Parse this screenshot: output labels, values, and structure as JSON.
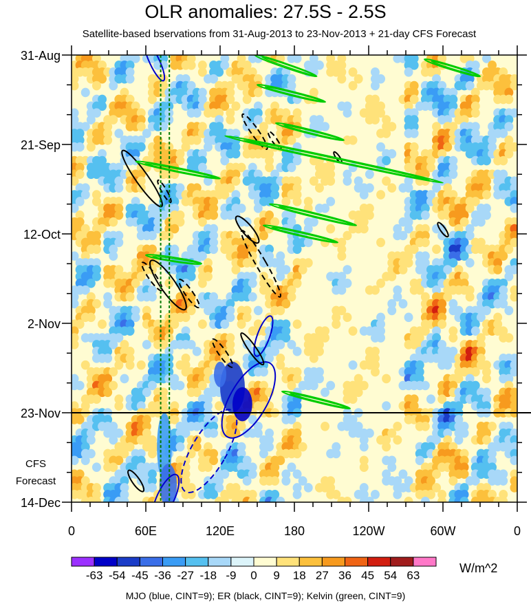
{
  "chart_data": {
    "type": "heatmap",
    "title": "OLR anomalies: 27.5S - 2.5S",
    "subtitle": "Satellite-based bservations from 31-Aug-2013 to 23-Nov-2013 + 21-day CFS Forecast",
    "xlabel": "",
    "ylabel": "",
    "x_range_deg_east": [
      0,
      360
    ],
    "x_ticks": [
      {
        "lon": 0,
        "label": "0"
      },
      {
        "lon": 60,
        "label": "60E"
      },
      {
        "lon": 120,
        "label": "120E"
      },
      {
        "lon": 180,
        "label": "180"
      },
      {
        "lon": 240,
        "label": "120W"
      },
      {
        "lon": 300,
        "label": "60W"
      },
      {
        "lon": 360,
        "label": "0"
      }
    ],
    "y_range_days_since_31aug": [
      0,
      105
    ],
    "y_ticks": [
      {
        "day": 0,
        "label": "31-Aug"
      },
      {
        "day": 21,
        "label": "21-Sep"
      },
      {
        "day": 42,
        "label": "12-Oct"
      },
      {
        "day": 63,
        "label": "2-Nov"
      },
      {
        "day": 84,
        "label": "23-Nov"
      },
      {
        "day": 105,
        "label": "14-Dec"
      }
    ],
    "observation_end_day": 84,
    "forecast_label": "CFS Forecast",
    "reference_lon_lines": [
      72,
      79
    ],
    "colorbar": {
      "levels": [
        "-63",
        "-54",
        "-45",
        "-36",
        "-27",
        "-18",
        "-9",
        "0",
        "9",
        "18",
        "27",
        "36",
        "45",
        "54",
        "63"
      ],
      "colors": [
        "#9b30ff",
        "#0000c8",
        "#1a3cc8",
        "#3a6ee8",
        "#3a9cf5",
        "#55c0f0",
        "#a8d8f8",
        "#dcf4fa",
        "#fffcd2",
        "#ffe27a",
        "#fcc03c",
        "#f79a1e",
        "#f06414",
        "#d21e10",
        "#a01c1c",
        "#ff78c8"
      ],
      "units": "W/m^2"
    },
    "contour_legend": "MJO (blue, CINT=9); ER (black, CINT=9); Kelvin (green, CINT=9)",
    "contour_colors": {
      "mjo": "#0000cc",
      "er": "#000000",
      "kelvin": "#00cc00"
    },
    "mjo_contours": [
      {
        "lon": 67,
        "day": 1.5,
        "rx_deg": 4,
        "ry_days": 5,
        "tilt_deg": -25,
        "dashed": false
      },
      {
        "lon": 143,
        "day": 81,
        "rx_deg": 15,
        "ry_days": 10,
        "tilt_deg": 30,
        "dashed": false
      },
      {
        "lon": 155,
        "day": 66,
        "rx_deg": 5,
        "ry_days": 5,
        "tilt_deg": 20,
        "dashed": false
      },
      {
        "lon": 111,
        "day": 93,
        "rx_deg": 14,
        "ry_days": 11,
        "tilt_deg": 30,
        "dashed": true
      },
      {
        "lon": 76,
        "day": 104,
        "rx_deg": 7,
        "ry_days": 6,
        "tilt_deg": 25,
        "dashed": false
      }
    ],
    "er_contours": [
      {
        "lon": 57,
        "day": 29,
        "rx_deg": 5,
        "ry_days": 8,
        "tilt_deg": -35,
        "dashed": false
      },
      {
        "lon": 75,
        "day": 32,
        "rx_deg": 2,
        "ry_days": 3,
        "tilt_deg": -30,
        "dashed": true
      },
      {
        "lon": 148,
        "day": 18,
        "rx_deg": 3,
        "ry_days": 5,
        "tilt_deg": -35,
        "dashed": true
      },
      {
        "lon": 164,
        "day": 20,
        "rx_deg": 2,
        "ry_days": 2.5,
        "tilt_deg": -35,
        "dashed": true
      },
      {
        "lon": 142,
        "day": 41,
        "rx_deg": 4,
        "ry_days": 4,
        "tilt_deg": -40,
        "dashed": false
      },
      {
        "lon": 153,
        "day": 49,
        "rx_deg": 4,
        "ry_days": 9,
        "tilt_deg": -30,
        "dashed": true
      },
      {
        "lon": 65,
        "day": 52,
        "rx_deg": 3,
        "ry_days": 4,
        "tilt_deg": -35,
        "dashed": true
      },
      {
        "lon": 78,
        "day": 54,
        "rx_deg": 6,
        "ry_days": 7,
        "tilt_deg": -35,
        "dashed": false
      },
      {
        "lon": 95,
        "day": 56,
        "rx_deg": 3,
        "ry_days": 4,
        "tilt_deg": -35,
        "dashed": true
      },
      {
        "lon": 122,
        "day": 70,
        "rx_deg": 3,
        "ry_days": 4,
        "tilt_deg": -35,
        "dashed": true
      },
      {
        "lon": 146,
        "day": 69,
        "rx_deg": 3,
        "ry_days": 4.5,
        "tilt_deg": -35,
        "dashed": false
      },
      {
        "lon": 215,
        "day": 24,
        "rx_deg": 1.5,
        "ry_days": 1.5,
        "tilt_deg": -35,
        "dashed": false
      },
      {
        "lon": 300,
        "day": 41,
        "rx_deg": 2,
        "ry_days": 2,
        "tilt_deg": -35,
        "dashed": false
      },
      {
        "lon": 52,
        "day": 100,
        "rx_deg": 3,
        "ry_days": 3,
        "tilt_deg": -35,
        "dashed": false
      }
    ],
    "kelvin_contours": [
      {
        "lon0": 148,
        "day0": 0,
        "lon1": 198,
        "day1": 5
      },
      {
        "lon0": 150,
        "day0": 7,
        "lon1": 205,
        "day1": 11
      },
      {
        "lon0": 165,
        "day0": 16,
        "lon1": 220,
        "day1": 20
      },
      {
        "lon0": 124,
        "day0": 19,
        "lon1": 300,
        "day1": 30
      },
      {
        "lon0": 52,
        "day0": 25,
        "lon1": 120,
        "day1": 29
      },
      {
        "lon0": 160,
        "day0": 35,
        "lon1": 230,
        "day1": 40
      },
      {
        "lon0": 155,
        "day0": 40,
        "lon1": 215,
        "day1": 44
      },
      {
        "lon0": 285,
        "day0": 1,
        "lon1": 330,
        "day1": 5
      },
      {
        "lon0": 170,
        "day0": 79,
        "lon1": 225,
        "day1": 83
      },
      {
        "lon0": 60,
        "day0": 47,
        "lon1": 105,
        "day1": 49
      }
    ]
  },
  "footer_text": "MJO (blue, CINT=9); ER (black, CINT=9); Kelvin (green, CINT=9)"
}
